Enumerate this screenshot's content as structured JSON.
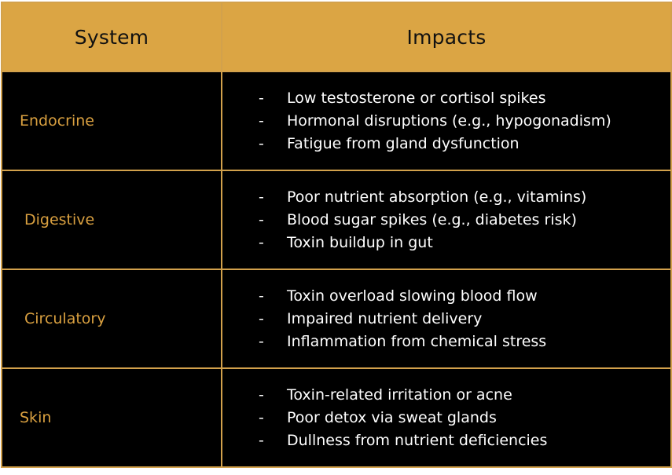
{
  "table": {
    "headers": {
      "system": "System",
      "impacts": "Impacts"
    },
    "rows": [
      {
        "system": "Endocrine",
        "impacts": [
          "Low testosterone or cortisol spikes",
          "Hormonal disruptions (e.g., hypogonadism)",
          "Fatigue from gland dysfunction"
        ]
      },
      {
        "system": "Digestive",
        "impacts": [
          "Poor nutrient absorption (e.g., vitamins)",
          "Blood sugar spikes (e.g., diabetes risk)",
          "Toxin buildup in gut"
        ]
      },
      {
        "system": "Circulatory",
        "impacts": [
          "Toxin overload slowing blood flow",
          "Impaired nutrient delivery",
          "Inflammation from chemical stress"
        ]
      },
      {
        "system": "Skin",
        "impacts": [
          "Toxin-related irritation or acne",
          "Poor detox via sweat glands",
          "Dullness from nutrient deficiencies"
        ]
      }
    ],
    "bullet_glyph": "-"
  },
  "colors": {
    "header_bg": "#dba544",
    "border": "#d2a14c",
    "system_text": "#d9a040",
    "body_bg": "#000000",
    "impact_text": "#ffffff"
  }
}
